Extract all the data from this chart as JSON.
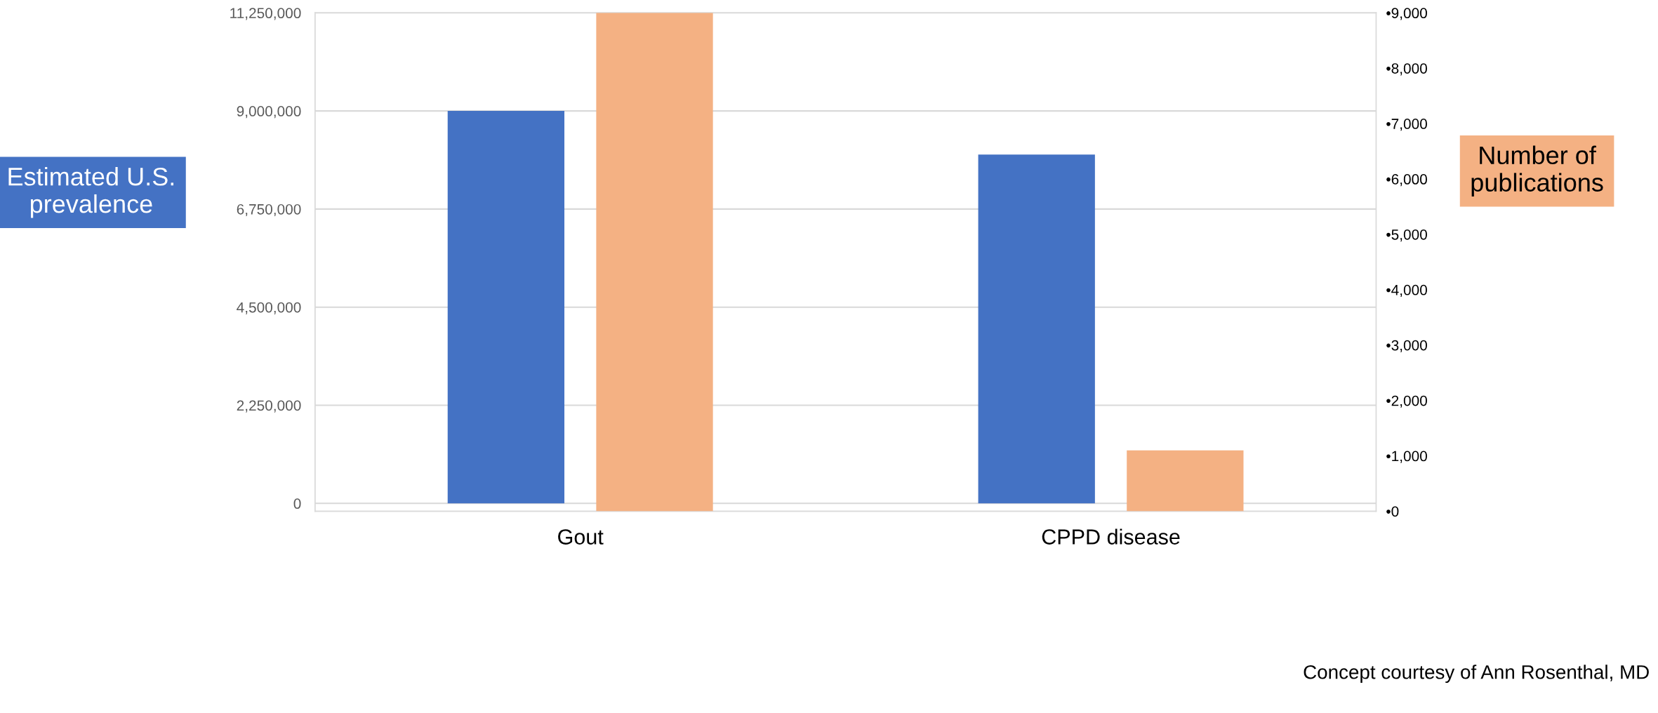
{
  "chart_data": {
    "type": "bar",
    "categories": [
      "Gout",
      "CPPD disease"
    ],
    "series": [
      {
        "color": "#4472c4",
        "values": [
          9000000,
          8000000
        ],
        "axis": "y"
      },
      {
        "color": "#f4b183",
        "values": [
          9000,
          1100
        ],
        "axis": "y2"
      }
    ],
    "ylabel": "Estimated U.S. prevalence",
    "y2label": "Number of publications",
    "ylim": [
      -180000,
      11250000
    ],
    "yticks": [
      {
        "value": 0,
        "label": "0"
      },
      {
        "value": 2250000,
        "label": "2,250,000"
      },
      {
        "value": 4500000,
        "label": "4,500,000"
      },
      {
        "value": 6750000,
        "label": "6,750,000"
      },
      {
        "value": 9000000,
        "label": "9,000,000"
      },
      {
        "value": 11250000,
        "label": "11,250,000"
      }
    ],
    "y2lim": [
      0,
      9000
    ],
    "y2ticks": [
      {
        "value": 0,
        "label": "•0"
      },
      {
        "value": 1000,
        "label": "•1,000"
      },
      {
        "value": 2000,
        "label": "•2,000"
      },
      {
        "value": 3000,
        "label": "•3,000"
      },
      {
        "value": 4000,
        "label": "•4,000"
      },
      {
        "value": 5000,
        "label": "•5,000"
      },
      {
        "value": 6000,
        "label": "•6,000"
      },
      {
        "value": 7000,
        "label": "•7,000"
      },
      {
        "value": 8000,
        "label": "•8,000"
      },
      {
        "value": 9000,
        "label": "•9,000"
      }
    ],
    "grid": "y",
    "legend": false,
    "annotations": [
      "Concept courtesy of Ann Rosenthal, MD"
    ]
  }
}
